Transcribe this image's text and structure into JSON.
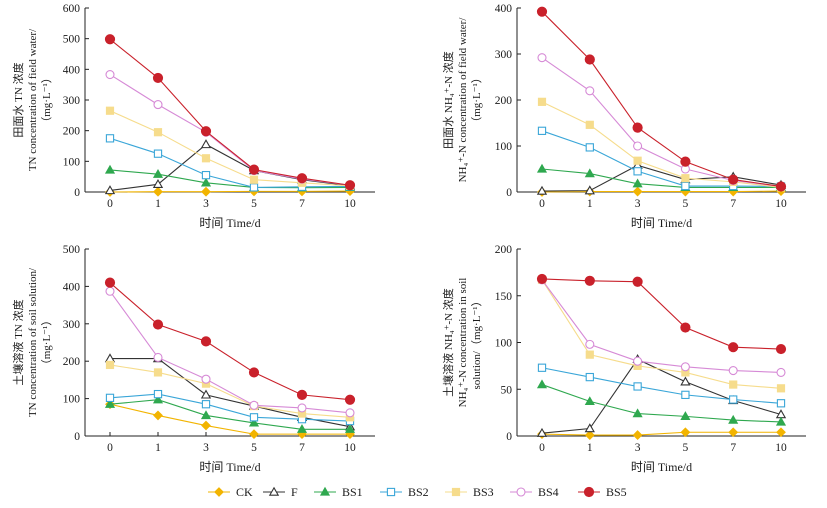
{
  "chart_data": [
    {
      "type": "line",
      "ylabel": [
        "田面水 TN 浓度",
        "TN concentration of field water/",
        "（mg·L⁻¹）"
      ],
      "xlabel": "时间 Time/d",
      "ylim": [
        0,
        600
      ],
      "yticks": [
        0,
        100,
        200,
        300,
        400,
        500,
        600
      ],
      "x": [
        0,
        1,
        3,
        5,
        7,
        10
      ],
      "series": [
        {
          "name": "CK",
          "values": [
            0,
            1,
            1,
            2,
            2,
            3
          ]
        },
        {
          "name": "F",
          "values": [
            5,
            25,
            155,
            70,
            40,
            20
          ]
        },
        {
          "name": "BS1",
          "values": [
            72,
            58,
            30,
            15,
            14,
            15
          ]
        },
        {
          "name": "BS2",
          "values": [
            175,
            125,
            55,
            15,
            17,
            18
          ]
        },
        {
          "name": "BS3",
          "values": [
            265,
            195,
            110,
            40,
            30,
            20
          ]
        },
        {
          "name": "BS4",
          "values": [
            383,
            285,
            195,
            70,
            42,
            22
          ]
        },
        {
          "name": "BS5",
          "values": [
            498,
            372,
            198,
            73,
            45,
            22
          ]
        }
      ]
    },
    {
      "type": "line",
      "ylabel": [
        "田面水 NH₄⁺-N 浓度",
        "NH₄⁺-N concentration of field water/",
        "（mg·L⁻¹）"
      ],
      "xlabel": "时间 Time/d",
      "ylim": [
        0,
        400
      ],
      "yticks": [
        0,
        100,
        200,
        300,
        400
      ],
      "x": [
        0,
        1,
        3,
        5,
        7,
        10
      ],
      "series": [
        {
          "name": "CK",
          "values": [
            0,
            1,
            1,
            1,
            1,
            2
          ]
        },
        {
          "name": "F",
          "values": [
            2,
            3,
            58,
            27,
            33,
            15
          ]
        },
        {
          "name": "BS1",
          "values": [
            50,
            40,
            18,
            10,
            10,
            10
          ]
        },
        {
          "name": "BS2",
          "values": [
            133,
            97,
            45,
            13,
            13,
            12
          ]
        },
        {
          "name": "BS3",
          "values": [
            196,
            146,
            68,
            30,
            22,
            10
          ]
        },
        {
          "name": "BS4",
          "values": [
            292,
            220,
            100,
            50,
            25,
            12
          ]
        },
        {
          "name": "BS5",
          "values": [
            392,
            288,
            140,
            66,
            27,
            12
          ]
        }
      ]
    },
    {
      "type": "line",
      "ylabel": [
        "土壤溶液 TN 浓度",
        "TN concentration of soil solution/",
        "（mg·L⁻¹）"
      ],
      "xlabel": "时间 Time/d",
      "ylim": [
        0,
        500
      ],
      "yticks": [
        0,
        100,
        200,
        300,
        400,
        500
      ],
      "x": [
        0,
        1,
        3,
        5,
        7,
        10
      ],
      "series": [
        {
          "name": "CK",
          "values": [
            85,
            55,
            28,
            5,
            5,
            5
          ]
        },
        {
          "name": "F",
          "values": [
            207,
            207,
            110,
            80,
            50,
            25
          ]
        },
        {
          "name": "BS1",
          "values": [
            85,
            97,
            55,
            35,
            18,
            18
          ]
        },
        {
          "name": "BS2",
          "values": [
            102,
            112,
            85,
            50,
            45,
            40
          ]
        },
        {
          "name": "BS3",
          "values": [
            190,
            170,
            140,
            80,
            60,
            50
          ]
        },
        {
          "name": "BS4",
          "values": [
            387,
            210,
            152,
            82,
            75,
            62
          ]
        },
        {
          "name": "BS5",
          "values": [
            410,
            298,
            253,
            170,
            110,
            97
          ]
        }
      ]
    },
    {
      "type": "line",
      "ylabel": [
        "土壤溶液 NH₄⁺-N 浓度",
        "NH₄⁺-N concentration in soil",
        "solution/（mg·L⁻¹）"
      ],
      "xlabel": "时间 Time/d",
      "ylim": [
        0,
        200
      ],
      "yticks": [
        0,
        50,
        100,
        150,
        200
      ],
      "x": [
        0,
        1,
        3,
        5,
        7,
        10
      ],
      "series": [
        {
          "name": "CK",
          "values": [
            2,
            1,
            1,
            4,
            4,
            4
          ]
        },
        {
          "name": "F",
          "values": [
            3,
            8,
            82,
            58,
            38,
            23
          ]
        },
        {
          "name": "BS1",
          "values": [
            55,
            37,
            24,
            21,
            17,
            15
          ]
        },
        {
          "name": "BS2",
          "values": [
            73,
            63,
            53,
            44,
            39,
            35
          ]
        },
        {
          "name": "BS3",
          "values": [
            167,
            87,
            75,
            68,
            55,
            51
          ]
        },
        {
          "name": "BS4",
          "values": [
            167,
            98,
            80,
            74,
            70,
            68
          ]
        },
        {
          "name": "BS5",
          "values": [
            168,
            166,
            165,
            116,
            95,
            93
          ]
        }
      ]
    }
  ],
  "legend": [
    {
      "name": "CK",
      "color": "#f2b400",
      "marker": "diamond-filled"
    },
    {
      "name": "F",
      "color": "#333333",
      "marker": "triangle-open"
    },
    {
      "name": "BS1",
      "color": "#2fa84f",
      "marker": "triangle-filled"
    },
    {
      "name": "BS2",
      "color": "#3aa6d8",
      "marker": "square-open"
    },
    {
      "name": "BS3",
      "color": "#f6dc8c",
      "marker": "square-filled"
    },
    {
      "name": "BS4",
      "color": "#d68ad6",
      "marker": "circle-open"
    },
    {
      "name": "BS5",
      "color": "#c9212b",
      "marker": "circle-filled"
    }
  ]
}
